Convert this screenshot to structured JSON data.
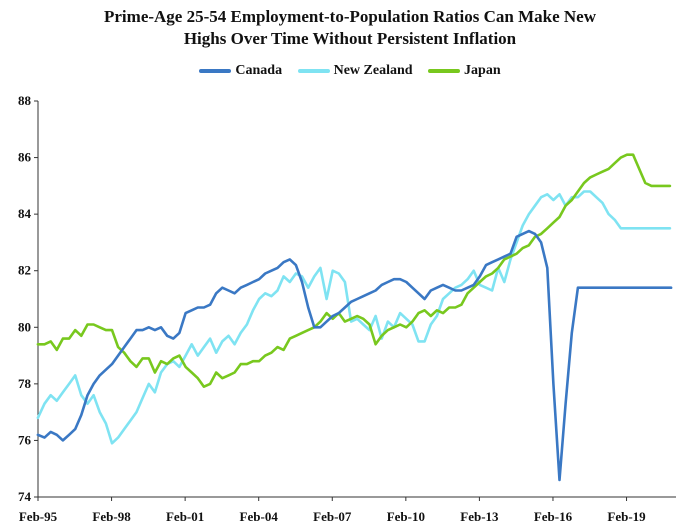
{
  "chart_data": {
    "type": "line",
    "title_line1": "Prime-Age 25-54 Employment-to-Population Ratios Can Make New",
    "title_line2": "Highs Over Time Without Persistent Inflation",
    "legend_position": "top",
    "grid": false,
    "ylim": [
      74,
      88
    ],
    "yticks": [
      "74",
      "76",
      "78",
      "80",
      "82",
      "84",
      "86",
      "88"
    ],
    "xlim": [
      1995.083,
      2021.1
    ],
    "xticks": [
      {
        "label": "Feb-95",
        "value": 1995.083
      },
      {
        "label": "Feb-98",
        "value": 1998.083
      },
      {
        "label": "Feb-01",
        "value": 2001.083
      },
      {
        "label": "Feb-04",
        "value": 2004.083
      },
      {
        "label": "Feb-07",
        "value": 2007.083
      },
      {
        "label": "Feb-10",
        "value": 2010.083
      },
      {
        "label": "Feb-13",
        "value": 2013.083
      },
      {
        "label": "Feb-16",
        "value": 2016.083
      },
      {
        "label": "Feb-19",
        "value": 2019.083
      }
    ],
    "series": [
      {
        "name": "Canada",
        "color": "#3a78c4",
        "x": [
          1995.08,
          1995.35,
          1995.6,
          1995.85,
          1996.1,
          1996.35,
          1996.6,
          1996.85,
          1997.1,
          1997.35,
          1997.6,
          1997.85,
          1998.1,
          1998.35,
          1998.6,
          1998.85,
          1999.1,
          1999.35,
          1999.6,
          1999.85,
          2000.1,
          2000.35,
          2000.6,
          2000.85,
          2001.1,
          2001.35,
          2001.6,
          2001.85,
          2002.1,
          2002.35,
          2002.6,
          2002.85,
          2003.1,
          2003.35,
          2003.6,
          2003.85,
          2004.1,
          2004.35,
          2004.6,
          2004.85,
          2005.1,
          2005.35,
          2005.6,
          2005.85,
          2006.1,
          2006.35,
          2006.6,
          2006.85,
          2007.1,
          2007.35,
          2007.6,
          2007.85,
          2008.1,
          2008.35,
          2008.6,
          2008.85,
          2009.1,
          2009.35,
          2009.6,
          2009.85,
          2010.1,
          2010.35,
          2010.6,
          2010.85,
          2011.1,
          2011.35,
          2011.6,
          2011.85,
          2012.1,
          2012.35,
          2012.6,
          2012.85,
          2013.1,
          2013.35,
          2013.6,
          2013.85,
          2014.1,
          2014.35,
          2014.6,
          2014.85,
          2015.1,
          2015.35,
          2015.6,
          2015.85,
          2016.1,
          2016.35,
          2016.6,
          2016.85,
          2017.1,
          2017.35,
          2017.6,
          2017.85,
          2018.1,
          2018.35,
          2018.6,
          2018.85,
          2019.1,
          2019.35,
          2019.6,
          2019.85,
          2020.0,
          2020.1,
          2020.2,
          2020.35,
          2020.55,
          2020.75,
          2020.9
        ],
        "values": [
          76.2,
          76.1,
          76.3,
          76.2,
          76.0,
          76.2,
          76.4,
          76.9,
          77.6,
          78.0,
          78.3,
          78.5,
          78.7,
          79.0,
          79.3,
          79.6,
          79.9,
          79.9,
          80.0,
          79.9,
          80.0,
          79.7,
          79.6,
          79.8,
          80.5,
          80.6,
          80.7,
          80.7,
          80.8,
          81.2,
          81.4,
          81.3,
          81.2,
          81.4,
          81.5,
          81.6,
          81.7,
          81.9,
          82.0,
          82.1,
          82.3,
          82.4,
          82.2,
          81.6,
          80.7,
          80.0,
          80.0,
          80.2,
          80.4,
          80.5,
          80.7,
          80.9,
          81.0,
          81.1,
          81.2,
          81.3,
          81.5,
          81.6,
          81.7,
          81.7,
          81.6,
          81.4,
          81.2,
          81.0,
          81.3,
          81.4,
          81.5,
          81.4,
          81.3,
          81.3,
          81.4,
          81.5,
          81.8,
          82.2,
          82.3,
          82.4,
          82.5,
          82.6,
          83.2,
          83.3,
          83.4,
          83.3,
          83.0,
          82.1,
          78.0,
          74.6,
          77.3,
          79.8,
          81.4,
          81.4,
          81.4,
          81.4,
          81.4,
          81.4,
          81.4,
          81.4,
          81.4,
          81.4,
          81.4,
          81.4,
          81.4,
          81.4,
          81.4,
          81.4,
          81.4,
          81.4,
          81.4
        ]
      },
      {
        "name": "New Zealand",
        "color": "#7fe3f2",
        "x": [
          1995.08,
          1995.35,
          1995.6,
          1995.85,
          1996.1,
          1996.35,
          1996.6,
          1996.85,
          1997.1,
          1997.35,
          1997.6,
          1997.85,
          1998.1,
          1998.35,
          1998.6,
          1998.85,
          1999.1,
          1999.35,
          1999.6,
          1999.85,
          2000.1,
          2000.35,
          2000.6,
          2000.85,
          2001.1,
          2001.35,
          2001.6,
          2001.85,
          2002.1,
          2002.35,
          2002.6,
          2002.85,
          2003.1,
          2003.35,
          2003.6,
          2003.85,
          2004.1,
          2004.35,
          2004.6,
          2004.85,
          2005.1,
          2005.35,
          2005.6,
          2005.85,
          2006.1,
          2006.35,
          2006.6,
          2006.85,
          2007.1,
          2007.35,
          2007.6,
          2007.85,
          2008.1,
          2008.35,
          2008.6,
          2008.85,
          2009.1,
          2009.35,
          2009.6,
          2009.85,
          2010.1,
          2010.35,
          2010.6,
          2010.85,
          2011.1,
          2011.35,
          2011.6,
          2011.85,
          2012.1,
          2012.35,
          2012.6,
          2012.85,
          2013.1,
          2013.35,
          2013.6,
          2013.85,
          2014.1,
          2014.35,
          2014.6,
          2014.85,
          2015.1,
          2015.35,
          2015.6,
          2015.85,
          2016.1,
          2016.35,
          2016.6,
          2016.85,
          2017.1,
          2017.35,
          2017.6,
          2017.85,
          2018.1,
          2018.35,
          2018.6,
          2018.85,
          2019.1,
          2019.35,
          2019.6,
          2019.85,
          2020.1,
          2020.35,
          2020.6,
          2020.85
        ],
        "values": [
          76.8,
          77.3,
          77.6,
          77.4,
          77.7,
          78.0,
          78.3,
          77.6,
          77.3,
          77.6,
          77.0,
          76.6,
          75.9,
          76.1,
          76.4,
          76.7,
          77.0,
          77.5,
          78.0,
          77.7,
          78.4,
          78.7,
          78.8,
          78.6,
          79.0,
          79.4,
          79.0,
          79.3,
          79.6,
          79.1,
          79.5,
          79.7,
          79.4,
          79.8,
          80.1,
          80.6,
          81.0,
          81.2,
          81.1,
          81.3,
          81.8,
          81.6,
          81.9,
          81.8,
          81.4,
          81.8,
          82.1,
          81.0,
          82.0,
          81.9,
          81.6,
          80.2,
          80.3,
          80.1,
          79.9,
          80.4,
          79.6,
          80.2,
          80.0,
          80.5,
          80.3,
          80.1,
          79.5,
          79.5,
          80.1,
          80.4,
          81.0,
          81.2,
          81.4,
          81.5,
          81.7,
          82.0,
          81.5,
          81.4,
          81.3,
          82.1,
          81.6,
          82.4,
          83.0,
          83.6,
          84.0,
          84.3,
          84.6,
          84.7,
          84.5,
          84.7,
          84.3,
          84.6,
          84.6,
          84.8,
          84.8,
          84.6,
          84.4,
          84.0,
          83.8,
          83.5,
          83.5,
          83.5,
          83.5,
          83.5,
          83.5,
          83.5,
          83.5,
          83.5
        ]
      },
      {
        "name": "Japan",
        "color": "#78c81e",
        "x": [
          1995.08,
          1995.35,
          1995.6,
          1995.85,
          1996.1,
          1996.35,
          1996.6,
          1996.85,
          1997.1,
          1997.35,
          1997.6,
          1997.85,
          1998.1,
          1998.35,
          1998.6,
          1998.85,
          1999.1,
          1999.35,
          1999.6,
          1999.85,
          2000.1,
          2000.35,
          2000.6,
          2000.85,
          2001.1,
          2001.35,
          2001.6,
          2001.85,
          2002.1,
          2002.35,
          2002.6,
          2002.85,
          2003.1,
          2003.35,
          2003.6,
          2003.85,
          2004.1,
          2004.35,
          2004.6,
          2004.85,
          2005.1,
          2005.35,
          2005.6,
          2005.85,
          2006.1,
          2006.35,
          2006.6,
          2006.85,
          2007.1,
          2007.35,
          2007.6,
          2007.85,
          2008.1,
          2008.35,
          2008.6,
          2008.85,
          2009.1,
          2009.35,
          2009.6,
          2009.85,
          2010.1,
          2010.35,
          2010.6,
          2010.85,
          2011.1,
          2011.35,
          2011.6,
          2011.85,
          2012.1,
          2012.35,
          2012.6,
          2012.85,
          2013.1,
          2013.35,
          2013.6,
          2013.85,
          2014.1,
          2014.35,
          2014.6,
          2014.85,
          2015.1,
          2015.35,
          2015.6,
          2015.85,
          2016.1,
          2016.35,
          2016.6,
          2016.85,
          2017.1,
          2017.35,
          2017.6,
          2017.85,
          2018.1,
          2018.35,
          2018.6,
          2018.85,
          2019.1,
          2019.35,
          2019.6,
          2019.85,
          2020.1,
          2020.35,
          2020.6,
          2020.85
        ],
        "values": [
          79.4,
          79.4,
          79.5,
          79.2,
          79.6,
          79.6,
          79.9,
          79.7,
          80.1,
          80.1,
          80.0,
          79.9,
          79.9,
          79.3,
          79.1,
          78.8,
          78.6,
          78.9,
          78.9,
          78.4,
          78.8,
          78.7,
          78.9,
          79.0,
          78.6,
          78.4,
          78.2,
          77.9,
          78.0,
          78.4,
          78.2,
          78.3,
          78.4,
          78.7,
          78.7,
          78.8,
          78.8,
          79.0,
          79.1,
          79.3,
          79.2,
          79.6,
          79.7,
          79.8,
          79.9,
          80.0,
          80.2,
          80.5,
          80.3,
          80.5,
          80.2,
          80.3,
          80.4,
          80.3,
          80.1,
          79.4,
          79.7,
          79.9,
          80.0,
          80.1,
          80.0,
          80.2,
          80.5,
          80.6,
          80.4,
          80.6,
          80.5,
          80.7,
          80.7,
          80.8,
          81.2,
          81.4,
          81.6,
          81.8,
          81.9,
          82.1,
          82.4,
          82.5,
          82.6,
          82.8,
          82.9,
          83.2,
          83.3,
          83.5,
          83.7,
          83.9,
          84.3,
          84.5,
          84.8,
          85.1,
          85.3,
          85.4,
          85.5,
          85.6,
          85.8,
          86.0,
          86.1,
          86.1,
          85.6,
          85.1,
          85.0,
          85.0,
          85.0,
          85.0
        ]
      }
    ]
  }
}
